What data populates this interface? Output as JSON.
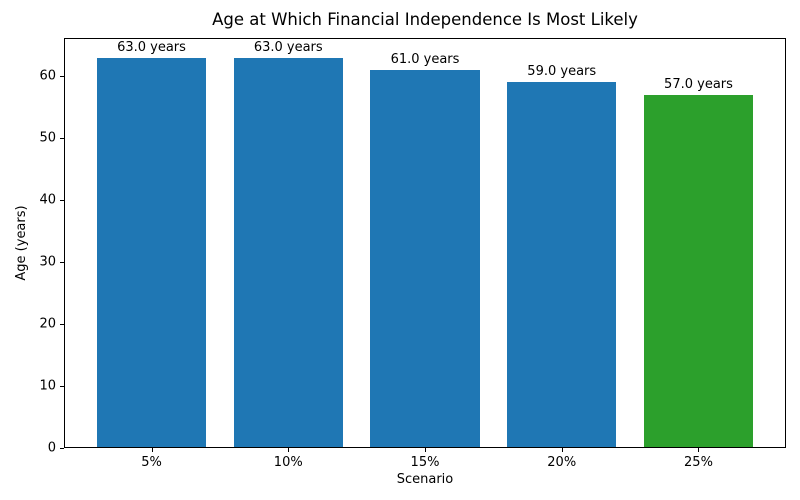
{
  "chart_data": {
    "type": "bar",
    "title": "Age at Which Financial Independence Is Most Likely",
    "xlabel": "Scenario",
    "ylabel": "Age (years)",
    "categories": [
      "5%",
      "10%",
      "15%",
      "20%",
      "25%"
    ],
    "values": [
      63.0,
      63.0,
      61.0,
      59.0,
      57.0
    ],
    "bar_labels": [
      "63.0 years",
      "63.0 years",
      "61.0 years",
      "59.0 years",
      "57.0 years"
    ],
    "bar_colors": [
      "#1f77b4",
      "#1f77b4",
      "#1f77b4",
      "#1f77b4",
      "#2ca02c"
    ],
    "yticks": [
      0,
      10,
      20,
      30,
      40,
      50,
      60
    ],
    "ylim": [
      0,
      66.15
    ],
    "xlim": [
      -0.64,
      4.64
    ],
    "bar_width_units": 0.8,
    "grid": false,
    "legend": null,
    "colors": {
      "default_bar": "#1f77b4",
      "highlight_bar": "#2ca02c",
      "axis": "#000000",
      "background": "#ffffff"
    }
  }
}
